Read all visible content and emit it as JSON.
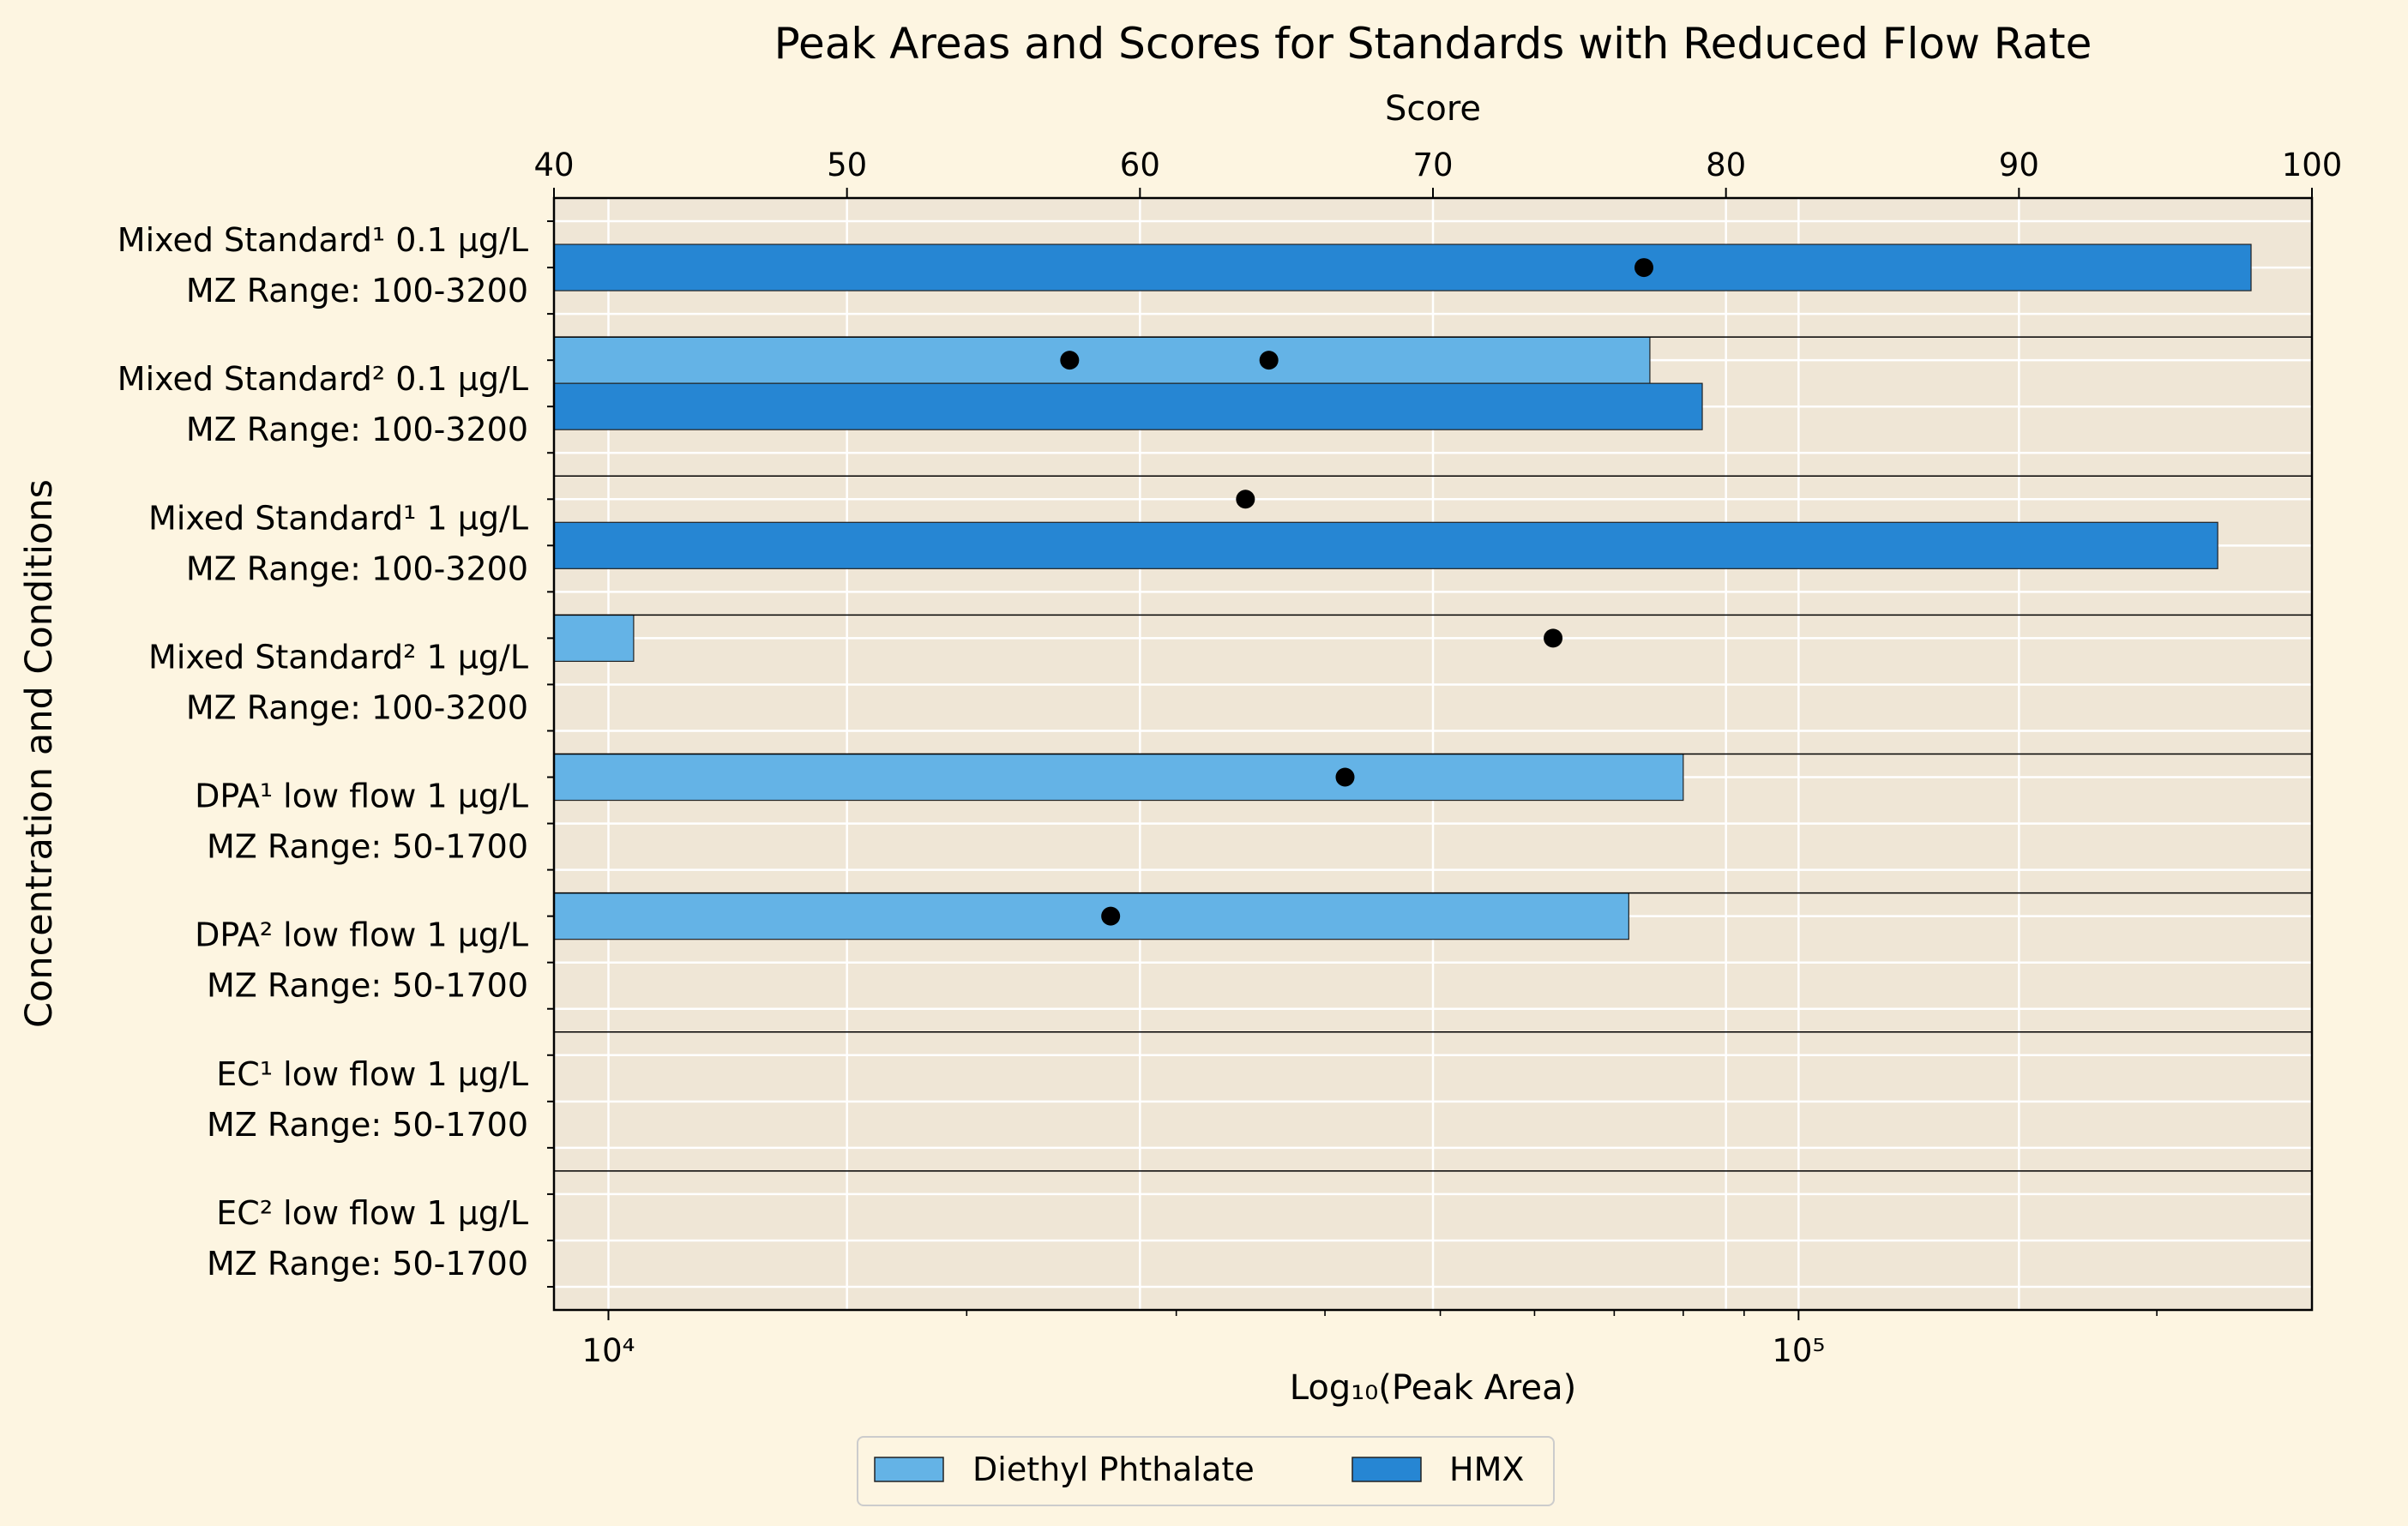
{
  "chart_data": {
    "type": "bar",
    "orientation": "horizontal",
    "title": "Peak Areas and Scores for Standards with Reduced Flow Rate",
    "xlabel_bottom": "Log₁₀(Peak Area)",
    "xlabel_top": "Score",
    "ylabel": "Concentration and Conditions",
    "x_scale_bottom": "log",
    "xlim_bottom": [
      9000,
      270000
    ],
    "xticks_bottom": [
      {
        "value": 10000,
        "label": "10⁴"
      },
      {
        "value": 100000,
        "label": "10⁵"
      }
    ],
    "xlim_top": [
      40,
      100
    ],
    "xticks_top": [
      40,
      50,
      60,
      70,
      80,
      90,
      100
    ],
    "grid": true,
    "legend_position": "bottom-center",
    "categories": [
      {
        "line1": "Mixed Standard¹ 0.1 µg/L",
        "line2": "MZ Range: 100-3200"
      },
      {
        "line1": "Mixed Standard² 0.1 µg/L",
        "line2": "MZ Range: 100-3200"
      },
      {
        "line1": "Mixed Standard¹ 1 µg/L",
        "line2": "MZ Range: 100-3200"
      },
      {
        "line1": "Mixed Standard² 1 µg/L",
        "line2": "MZ Range: 100-3200"
      },
      {
        "line1": "DPA¹ low flow 1 µg/L",
        "line2": "MZ Range: 50-1700"
      },
      {
        "line1": "DPA² low flow 1 µg/L",
        "line2": "MZ Range: 50-1700"
      },
      {
        "line1": "EC¹ low flow 1 µg/L",
        "line2": "MZ Range: 50-1700"
      },
      {
        "line1": "EC² low flow 1 µg/L",
        "line2": "MZ Range: 50-1700"
      }
    ],
    "series": [
      {
        "name": "Diethyl Phthalate",
        "color": "#64b3e6",
        "peak_areas": [
          null,
          75000,
          null,
          10500,
          80000,
          72000,
          null,
          null
        ],
        "scores": [
          null,
          64.4,
          null,
          74.1,
          67.0,
          59.0,
          null,
          null
        ]
      },
      {
        "name": "HMX",
        "color": "#2686d3",
        "peak_areas": [
          240000,
          83000,
          225000,
          null,
          null,
          null,
          null,
          null
        ],
        "scores": [
          77.2,
          57.6,
          63.6,
          null,
          null,
          null,
          null,
          null
        ]
      }
    ],
    "score_bar_assignment": [
      1,
      0,
      0,
      0,
      0,
      0,
      null,
      null
    ]
  }
}
